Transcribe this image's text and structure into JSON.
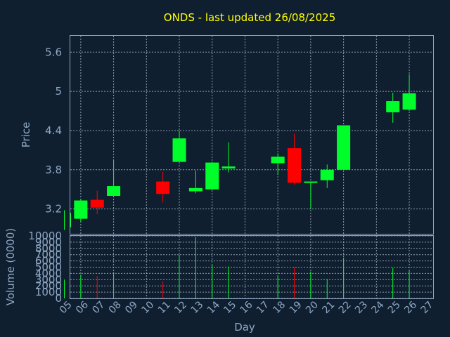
{
  "colors": {
    "background": "#0f1f30",
    "title": "#ffff00",
    "text": "#8fa8c4",
    "up": "#00ff2a",
    "down": "#ff0000",
    "grid": "#b8c4d0"
  },
  "chart_data": {
    "type": "candlestick",
    "title": "ONDS - last updated 26/08/2025",
    "xlabel": "Day",
    "ylabel": "Price",
    "volume_label": "Volume (0000)",
    "x_ticks": [
      "05",
      "06",
      "07",
      "08",
      "09",
      "10",
      "11",
      "12",
      "13",
      "14",
      "15",
      "16",
      "17",
      "18",
      "19",
      "20",
      "21",
      "22",
      "23",
      "24",
      "25",
      "26",
      "27"
    ],
    "price_ticks": [
      3.2,
      3.8,
      4.4,
      5,
      5.6
    ],
    "price_tick_labels": [
      "3.2",
      "3.8",
      "4.4",
      "5",
      "5.6"
    ],
    "price_ylim": [
      2.82,
      5.85
    ],
    "volume_ticks": [
      0,
      1000,
      2000,
      3000,
      4000,
      5000,
      6000,
      7000,
      8000,
      9000,
      10000
    ],
    "volume_tick_labels": [
      "0",
      "1000",
      "2000",
      "3000",
      "4000",
      "5000",
      "6000",
      "7000",
      "8000",
      "9000",
      "10000"
    ],
    "volume_ylim": [
      0,
      10000
    ],
    "grid": true,
    "candles": [
      {
        "day": "05",
        "open": 2.92,
        "high": 3.18,
        "low": 2.88,
        "close": 3.14,
        "volume": 3000
      },
      {
        "day": "06",
        "open": 3.05,
        "high": 3.35,
        "low": 3.0,
        "close": 3.33,
        "volume": 3800
      },
      {
        "day": "07",
        "open": 3.34,
        "high": 3.48,
        "low": 3.12,
        "close": 3.22,
        "volume": 3600
      },
      {
        "day": "08",
        "open": 3.4,
        "high": 3.95,
        "low": 3.38,
        "close": 3.55,
        "volume": 4200
      },
      {
        "day": "11",
        "open": 3.62,
        "high": 3.77,
        "low": 3.3,
        "close": 3.43,
        "volume": 2700
      },
      {
        "day": "12",
        "open": 3.92,
        "high": 4.4,
        "low": 3.92,
        "close": 4.28,
        "volume": 7000
      },
      {
        "day": "13",
        "open": 3.47,
        "high": 3.79,
        "low": 3.44,
        "close": 3.52,
        "volume": 9800
      },
      {
        "day": "14",
        "open": 3.5,
        "high": 3.92,
        "low": 3.49,
        "close": 3.91,
        "volume": 5400
      },
      {
        "day": "15",
        "open": 3.82,
        "high": 4.22,
        "low": 3.76,
        "close": 3.85,
        "volume": 5100
      },
      {
        "day": "18",
        "open": 3.9,
        "high": 4.05,
        "low": 3.72,
        "close": 4.0,
        "volume": 3600
      },
      {
        "day": "19",
        "open": 4.13,
        "high": 4.35,
        "low": 3.57,
        "close": 3.6,
        "volume": 5000
      },
      {
        "day": "20",
        "open": 3.6,
        "high": 3.62,
        "low": 3.2,
        "close": 3.62,
        "volume": 4300
      },
      {
        "day": "21",
        "open": 3.64,
        "high": 3.88,
        "low": 3.52,
        "close": 3.8,
        "volume": 3100
      },
      {
        "day": "22",
        "open": 3.8,
        "high": 4.48,
        "low": 3.8,
        "close": 4.48,
        "volume": 6500
      },
      {
        "day": "25",
        "open": 4.68,
        "high": 4.98,
        "low": 4.52,
        "close": 4.85,
        "volume": 4900
      },
      {
        "day": "26",
        "open": 4.72,
        "high": 5.26,
        "low": 4.7,
        "close": 4.97,
        "volume": 4500
      }
    ]
  }
}
